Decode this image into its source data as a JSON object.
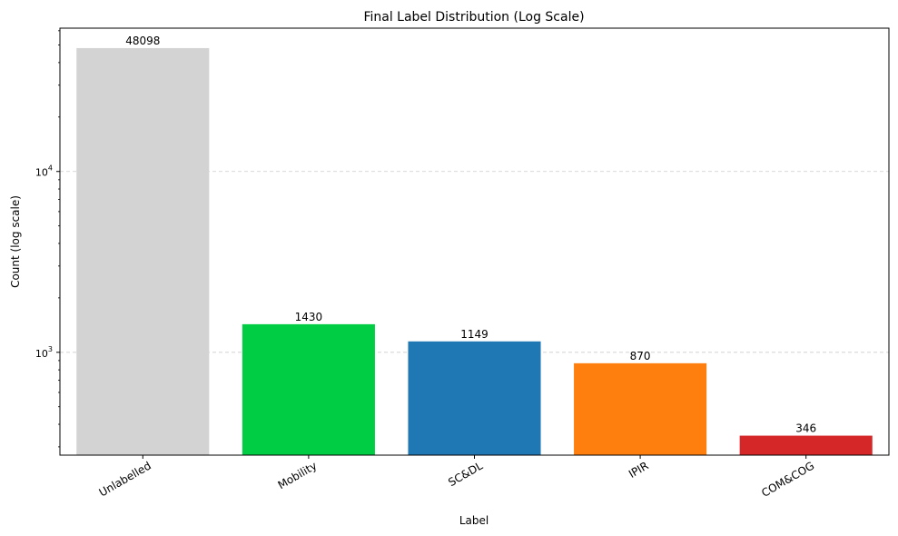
{
  "chart_data": {
    "type": "bar",
    "title": "Final Label Distribution (Log Scale)",
    "xlabel": "Label",
    "ylabel": "Count (log scale)",
    "yscale": "log",
    "ylim": [
      270,
      62000
    ],
    "grid": "y-dashed",
    "categories": [
      "Unlabelled",
      "Mobility",
      "SC&DL",
      "IPIR",
      "COM&COG"
    ],
    "values": [
      48098,
      1430,
      1149,
      870,
      346
    ],
    "value_labels": [
      "48098",
      "1430",
      "1149",
      "870",
      "346"
    ],
    "colors": [
      "#d3d3d3",
      "#00cc44",
      "#1f77b4",
      "#ff7f0e",
      "#d62728"
    ],
    "major_ticks": [
      {
        "value": 1000,
        "base": "10",
        "exp": "3"
      },
      {
        "value": 10000,
        "base": "10",
        "exp": "4"
      }
    ]
  }
}
